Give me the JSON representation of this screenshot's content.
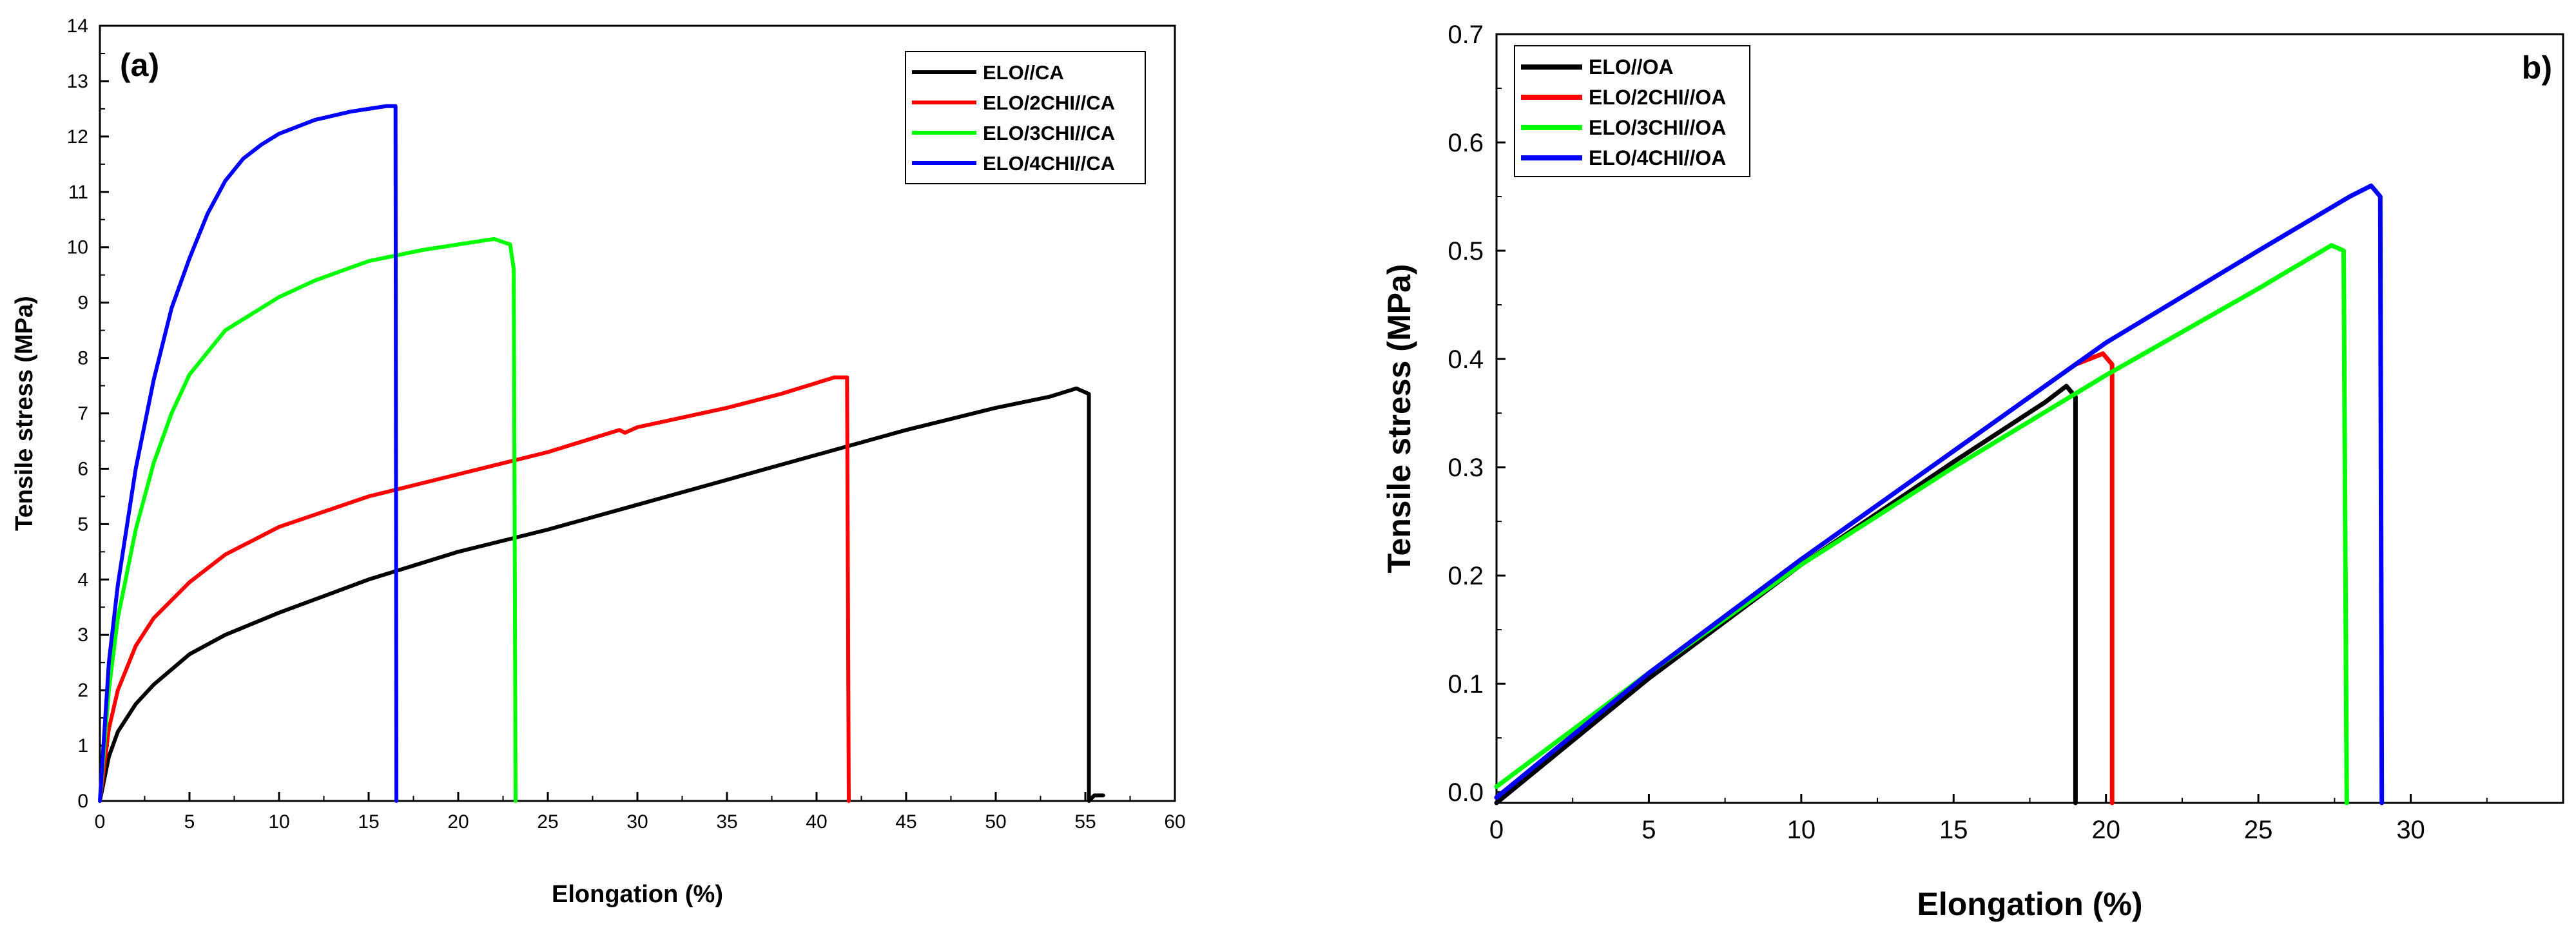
{
  "chart_data": [
    {
      "type": "line",
      "panel_label": "(a)",
      "xlabel": "Elongation (%)",
      "ylabel": "Tensile stress (MPa)",
      "xlim": [
        0,
        60
      ],
      "ylim": [
        0,
        14
      ],
      "xticks": [
        0,
        5,
        10,
        15,
        20,
        25,
        30,
        35,
        40,
        45,
        50,
        55,
        60
      ],
      "yticks": [
        0,
        1,
        2,
        3,
        4,
        5,
        6,
        7,
        8,
        9,
        10,
        11,
        12,
        13,
        14
      ],
      "legend_position": "top-right",
      "series": [
        {
          "name": "ELO//CA",
          "color": "#000000",
          "points": [
            [
              0,
              0
            ],
            [
              0.5,
              0.8
            ],
            [
              1,
              1.25
            ],
            [
              2,
              1.75
            ],
            [
              3,
              2.1
            ],
            [
              5,
              2.65
            ],
            [
              7,
              3.0
            ],
            [
              10,
              3.4
            ],
            [
              15,
              4.0
            ],
            [
              20,
              4.5
            ],
            [
              25,
              4.9
            ],
            [
              30,
              5.35
            ],
            [
              35,
              5.8
            ],
            [
              40,
              6.25
            ],
            [
              45,
              6.7
            ],
            [
              50,
              7.1
            ],
            [
              53,
              7.3
            ],
            [
              54.5,
              7.45
            ],
            [
              55.2,
              7.35
            ],
            [
              55.2,
              0
            ],
            [
              55.5,
              0.1
            ],
            [
              56,
              0.1
            ]
          ]
        },
        {
          "name": "ELO/2CHI//CA",
          "color": "#ff0000",
          "points": [
            [
              0,
              0
            ],
            [
              0.5,
              1.3
            ],
            [
              1,
              2.0
            ],
            [
              2,
              2.8
            ],
            [
              3,
              3.3
            ],
            [
              5,
              3.95
            ],
            [
              7,
              4.45
            ],
            [
              10,
              4.95
            ],
            [
              15,
              5.5
            ],
            [
              20,
              5.9
            ],
            [
              25,
              6.3
            ],
            [
              29,
              6.7
            ],
            [
              29.3,
              6.65
            ],
            [
              30,
              6.75
            ],
            [
              35,
              7.1
            ],
            [
              38,
              7.35
            ],
            [
              40,
              7.55
            ],
            [
              41,
              7.65
            ],
            [
              41.7,
              7.65
            ],
            [
              41.8,
              0
            ]
          ]
        },
        {
          "name": "ELO/3CHI//CA",
          "color": "#00ff00",
          "points": [
            [
              0,
              0
            ],
            [
              0.5,
              2.0
            ],
            [
              1,
              3.3
            ],
            [
              2,
              4.9
            ],
            [
              3,
              6.1
            ],
            [
              4,
              7.0
            ],
            [
              5,
              7.7
            ],
            [
              7,
              8.5
            ],
            [
              10,
              9.1
            ],
            [
              12,
              9.4
            ],
            [
              15,
              9.75
            ],
            [
              18,
              9.95
            ],
            [
              20,
              10.05
            ],
            [
              22,
              10.15
            ],
            [
              22.9,
              10.05
            ],
            [
              23.1,
              9.6
            ],
            [
              23.2,
              0
            ]
          ]
        },
        {
          "name": "ELO/4CHI//CA",
          "color": "#0000ff",
          "points": [
            [
              0,
              0
            ],
            [
              0.5,
              2.5
            ],
            [
              1,
              3.9
            ],
            [
              2,
              6.0
            ],
            [
              3,
              7.6
            ],
            [
              4,
              8.9
            ],
            [
              5,
              9.8
            ],
            [
              6,
              10.6
            ],
            [
              7,
              11.2
            ],
            [
              8,
              11.6
            ],
            [
              9,
              11.85
            ],
            [
              10,
              12.05
            ],
            [
              12,
              12.3
            ],
            [
              14,
              12.45
            ],
            [
              15,
              12.5
            ],
            [
              16,
              12.55
            ],
            [
              16.5,
              12.55
            ],
            [
              16.55,
              0
            ]
          ]
        }
      ]
    },
    {
      "type": "line",
      "panel_label": "b)",
      "xlabel": "Elongation (%)",
      "ylabel": "Tensile stress (MPa)",
      "xlim": [
        0,
        35
      ],
      "ylim": [
        -0.01,
        0.7
      ],
      "xticks": [
        0,
        5,
        10,
        15,
        20,
        25,
        30
      ],
      "xtick_labels": [
        "0",
        "5",
        "10",
        "15",
        "20",
        "25",
        "30"
      ],
      "yticks": [
        0.0,
        0.1,
        0.2,
        0.3,
        0.4,
        0.5,
        0.6,
        0.7
      ],
      "ytick_labels": [
        "0.0",
        "0.1",
        "0.2",
        "0.3",
        "0.4",
        "0.5",
        "0.6",
        "0.7"
      ],
      "legend_position": "top-left",
      "series": [
        {
          "name": "ELO//OA",
          "color": "#000000",
          "points": [
            [
              0,
              -0.01
            ],
            [
              5,
              0.105
            ],
            [
              10,
              0.21
            ],
            [
              15,
              0.305
            ],
            [
              18,
              0.36
            ],
            [
              18.7,
              0.375
            ],
            [
              19.0,
              0.365
            ],
            [
              19.0,
              -0.01
            ]
          ]
        },
        {
          "name": "ELO/2CHI//OA",
          "color": "#ff0000",
          "points": [
            [
              0,
              -0.005
            ],
            [
              5,
              0.11
            ],
            [
              10,
              0.215
            ],
            [
              15,
              0.315
            ],
            [
              19,
              0.395
            ],
            [
              19.9,
              0.405
            ],
            [
              20.2,
              0.395
            ],
            [
              20.2,
              -0.01
            ]
          ]
        },
        {
          "name": "ELO/3CHI//OA",
          "color": "#00ff00",
          "points": [
            [
              0,
              0.005
            ],
            [
              5,
              0.11
            ],
            [
              10,
              0.21
            ],
            [
              15,
              0.3
            ],
            [
              20,
              0.385
            ],
            [
              25,
              0.465
            ],
            [
              27.4,
              0.505
            ],
            [
              27.8,
              0.5
            ],
            [
              27.9,
              -0.01
            ]
          ]
        },
        {
          "name": "ELO/4CHI//OA",
          "color": "#0000ff",
          "points": [
            [
              0,
              -0.005
            ],
            [
              5,
              0.11
            ],
            [
              10,
              0.215
            ],
            [
              15,
              0.315
            ],
            [
              20,
              0.415
            ],
            [
              25,
              0.5
            ],
            [
              28,
              0.55
            ],
            [
              28.7,
              0.56
            ],
            [
              29.0,
              0.55
            ],
            [
              29.05,
              -0.01
            ]
          ]
        }
      ]
    }
  ]
}
